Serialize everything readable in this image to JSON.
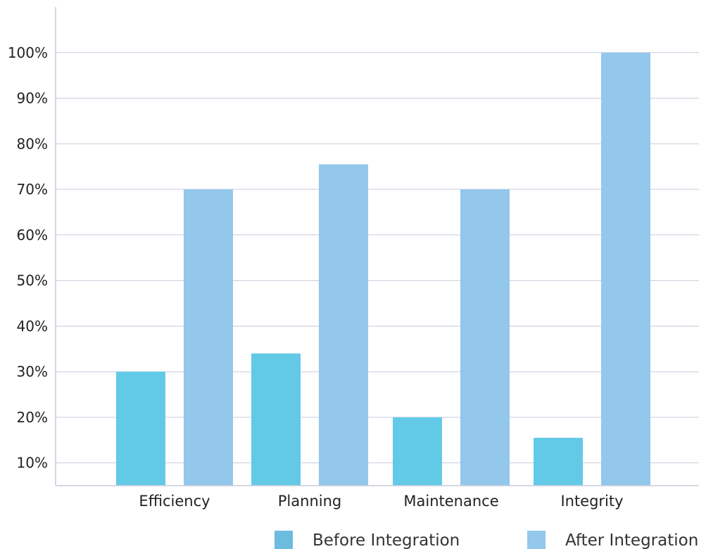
{
  "chart_data": {
    "type": "bar",
    "categories": [
      "Efficiency",
      "Planning",
      "Maintenance",
      "Integrity"
    ],
    "series": [
      {
        "name": "Before Integration",
        "values": [
          30,
          34,
          20,
          15.5
        ],
        "color": "#62cae6"
      },
      {
        "name": "After Integration",
        "values": [
          70,
          75.5,
          70,
          100
        ],
        "color": "#93c7ec"
      }
    ],
    "y_ticks": [
      "10%",
      "20%",
      "30%",
      "40%",
      "50%",
      "60%",
      "70%",
      "80%",
      "90%",
      "100%"
    ],
    "y_tick_values": [
      10,
      20,
      30,
      40,
      50,
      60,
      70,
      80,
      90,
      100
    ],
    "ylim": [
      5,
      110
    ],
    "grid": true,
    "grid_color": "#c9cbdc",
    "legend_position": "bottom-right",
    "legend_swatch_colors": [
      "#6bbcdf",
      "#93c7ec"
    ],
    "title": "",
    "xlabel": "",
    "ylabel": ""
  }
}
